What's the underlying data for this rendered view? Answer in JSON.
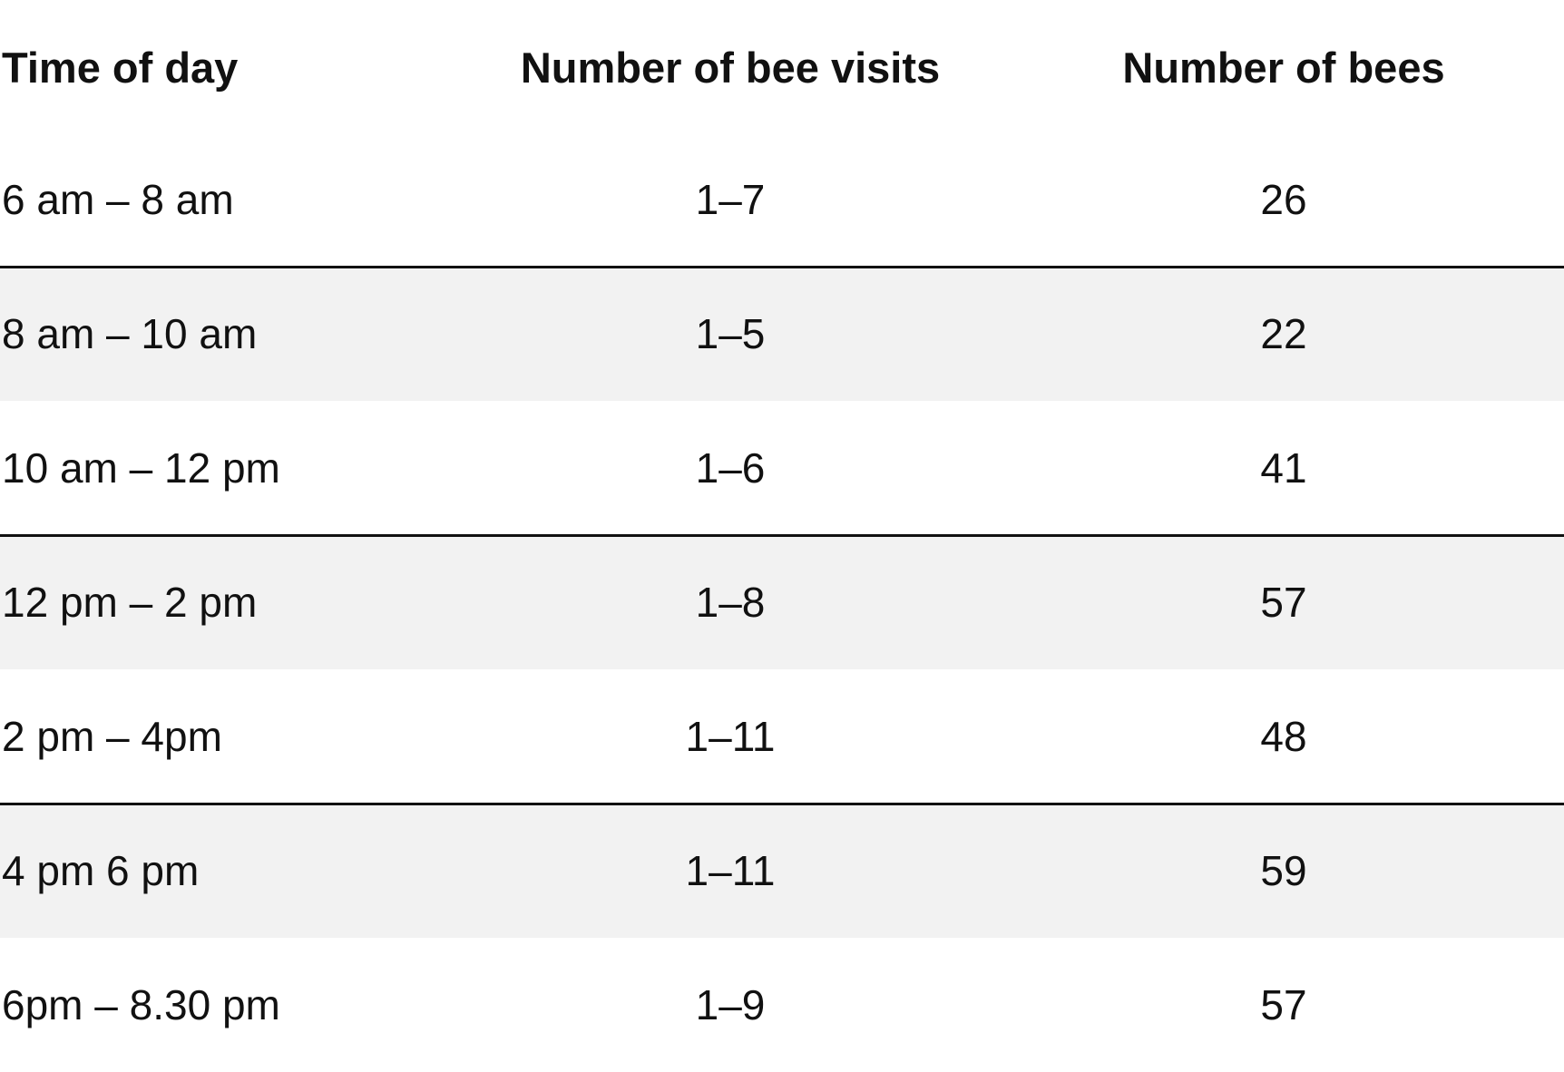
{
  "chart_data": {
    "type": "table",
    "columns": [
      "Time of day",
      "Number of bee visits",
      "Number of bees"
    ],
    "rows": [
      {
        "time": "6 am – 8 am",
        "visits": "1–7",
        "bees": 26
      },
      {
        "time": "8 am – 10 am",
        "visits": "1–5",
        "bees": 22
      },
      {
        "time": "10 am – 12 pm",
        "visits": "1–6",
        "bees": 41
      },
      {
        "time": "12 pm – 2 pm",
        "visits": "1–8",
        "bees": 57
      },
      {
        "time": "2 pm – 4pm",
        "visits": "1–11",
        "bees": 48
      },
      {
        "time": "4 pm 6 pm",
        "visits": "1–11",
        "bees": 59
      },
      {
        "time": "6pm – 8.30 pm",
        "visits": "1–9",
        "bees": 57
      }
    ]
  },
  "style": {
    "text_color": "#111111",
    "shaded_row_color": "#f2f2f2",
    "rule_color": "#111111"
  }
}
